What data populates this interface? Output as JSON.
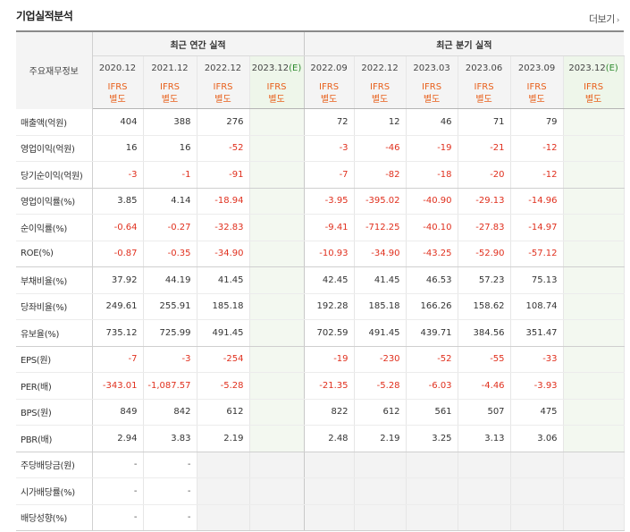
{
  "section_title": "기업실적분석",
  "more_label": "더보기",
  "row_header_label": "주요재무정보",
  "groups": {
    "annual": "최근 연간 실적",
    "quarterly": "최근 분기 실적"
  },
  "annual_periods": [
    "2020.12",
    "2021.12",
    "2022.12",
    "2023.12"
  ],
  "quarterly_periods": [
    "2022.09",
    "2022.12",
    "2023.03",
    "2023.06",
    "2023.09",
    "2023.12"
  ],
  "estimate_mark": "(E)",
  "ifrs_line1": "IFRS",
  "ifrs_line2": "별도",
  "rows": [
    {
      "label": "매출액(억원)",
      "values": [
        "404",
        "388",
        "276",
        "",
        "72",
        "12",
        "46",
        "71",
        "79",
        ""
      ]
    },
    {
      "label": "영업이익(억원)",
      "values": [
        "16",
        "16",
        "-52",
        "",
        "-3",
        "-46",
        "-19",
        "-21",
        "-12",
        ""
      ]
    },
    {
      "label": "당기순이익(억원)",
      "values": [
        "-3",
        "-1",
        "-91",
        "",
        "-7",
        "-82",
        "-18",
        "-20",
        "-12",
        ""
      ]
    },
    {
      "label": "영업이익률(%)",
      "values": [
        "3.85",
        "4.14",
        "-18.94",
        "",
        "-3.95",
        "-395.02",
        "-40.90",
        "-29.13",
        "-14.96",
        ""
      ]
    },
    {
      "label": "순이익률(%)",
      "values": [
        "-0.64",
        "-0.27",
        "-32.83",
        "",
        "-9.41",
        "-712.25",
        "-40.10",
        "-27.83",
        "-14.97",
        ""
      ]
    },
    {
      "label": "ROE(%)",
      "values": [
        "-0.87",
        "-0.35",
        "-34.90",
        "",
        "-10.93",
        "-34.90",
        "-43.25",
        "-52.90",
        "-57.12",
        ""
      ]
    },
    {
      "label": "부채비율(%)",
      "values": [
        "37.92",
        "44.19",
        "41.45",
        "",
        "42.45",
        "41.45",
        "46.53",
        "57.23",
        "75.13",
        ""
      ]
    },
    {
      "label": "당좌비율(%)",
      "values": [
        "249.61",
        "255.91",
        "185.18",
        "",
        "192.28",
        "185.18",
        "166.26",
        "158.62",
        "108.74",
        ""
      ]
    },
    {
      "label": "유보율(%)",
      "values": [
        "735.12",
        "725.99",
        "491.45",
        "",
        "702.59",
        "491.45",
        "439.71",
        "384.56",
        "351.47",
        ""
      ]
    },
    {
      "label": "EPS(원)",
      "values": [
        "-7",
        "-3",
        "-254",
        "",
        "-19",
        "-230",
        "-52",
        "-55",
        "-33",
        ""
      ]
    },
    {
      "label": "PER(배)",
      "values": [
        "-343.01",
        "-1,087.57",
        "-5.28",
        "",
        "-21.35",
        "-5.28",
        "-6.03",
        "-4.46",
        "-3.93",
        ""
      ]
    },
    {
      "label": "BPS(원)",
      "values": [
        "849",
        "842",
        "612",
        "",
        "822",
        "612",
        "561",
        "507",
        "475",
        ""
      ]
    },
    {
      "label": "PBR(배)",
      "values": [
        "2.94",
        "3.83",
        "2.19",
        "",
        "2.48",
        "2.19",
        "3.25",
        "3.13",
        "3.06",
        ""
      ]
    },
    {
      "label": "주당배당금(원)",
      "values": [
        "-",
        "-",
        "",
        "",
        "",
        "",
        "",
        "",
        "",
        ""
      ]
    },
    {
      "label": "시가배당률(%)",
      "values": [
        "-",
        "-",
        "",
        "",
        "",
        "",
        "",
        "",
        "",
        ""
      ]
    },
    {
      "label": "배당성향(%)",
      "values": [
        "-",
        "-",
        "",
        "",
        "",
        "",
        "",
        "",
        "",
        ""
      ]
    }
  ],
  "colors": {
    "negative": "#e0301e",
    "ifrs": "#e8601c",
    "estimate_bg": "#eef6ea",
    "estimate_mark": "#2e8b2e"
  }
}
